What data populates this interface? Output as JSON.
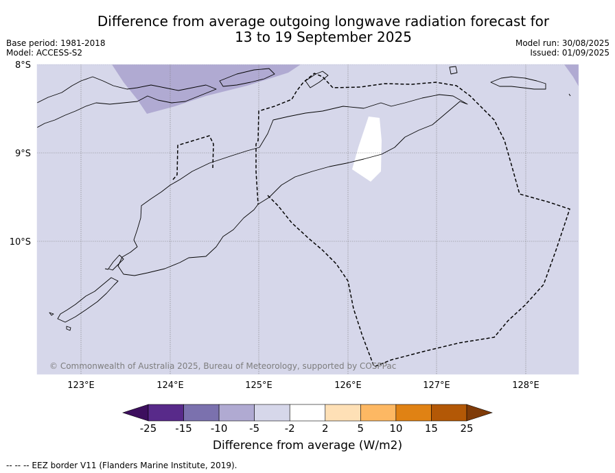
{
  "title": {
    "line1": "Difference from average outgoing longwave radiation forecast for",
    "line2": "13 to 19 September 2025"
  },
  "info": {
    "base_period": "Base period: 1981-2018",
    "model": "Model: ACCESS-S2",
    "model_run": "Model run: 30/08/2025",
    "issued": "Issued: 01/09/2025"
  },
  "map": {
    "lat_ticks": [
      "8°S",
      "9°S",
      "10°S"
    ],
    "lon_ticks": [
      "123°E",
      "124°E",
      "125°E",
      "126°E",
      "127°E",
      "128°E"
    ],
    "extent": {
      "lon_min": 122.5,
      "lon_max": 128.6,
      "lat_top": -8.0,
      "lat_bottom": -11.5
    },
    "copyright": "© Commonwealth of Australia 2025, Bureau of Meteorology, supported by COSPPac",
    "colors": {
      "background_anomaly": "#d6d7ea",
      "negative_anomaly": "#b0aad2",
      "neutral": "#ffffff"
    }
  },
  "colorbar": {
    "ticks": [
      "-25",
      "-15",
      "-10",
      "-5",
      "-2",
      "2",
      "5",
      "10",
      "15",
      "25"
    ],
    "colors": [
      "#3d0f5e",
      "#582a8a",
      "#7b71ae",
      "#b0aad2",
      "#d6d7ea",
      "#ffffff",
      "#fee0b6",
      "#fdb863",
      "#e08214",
      "#b35806",
      "#7f3b08"
    ],
    "label": "Difference from average (W/m2)"
  },
  "footer": {
    "eez_note": "--  --  -- EEZ border V11 (Flanders Marine Institute, 2019)."
  }
}
